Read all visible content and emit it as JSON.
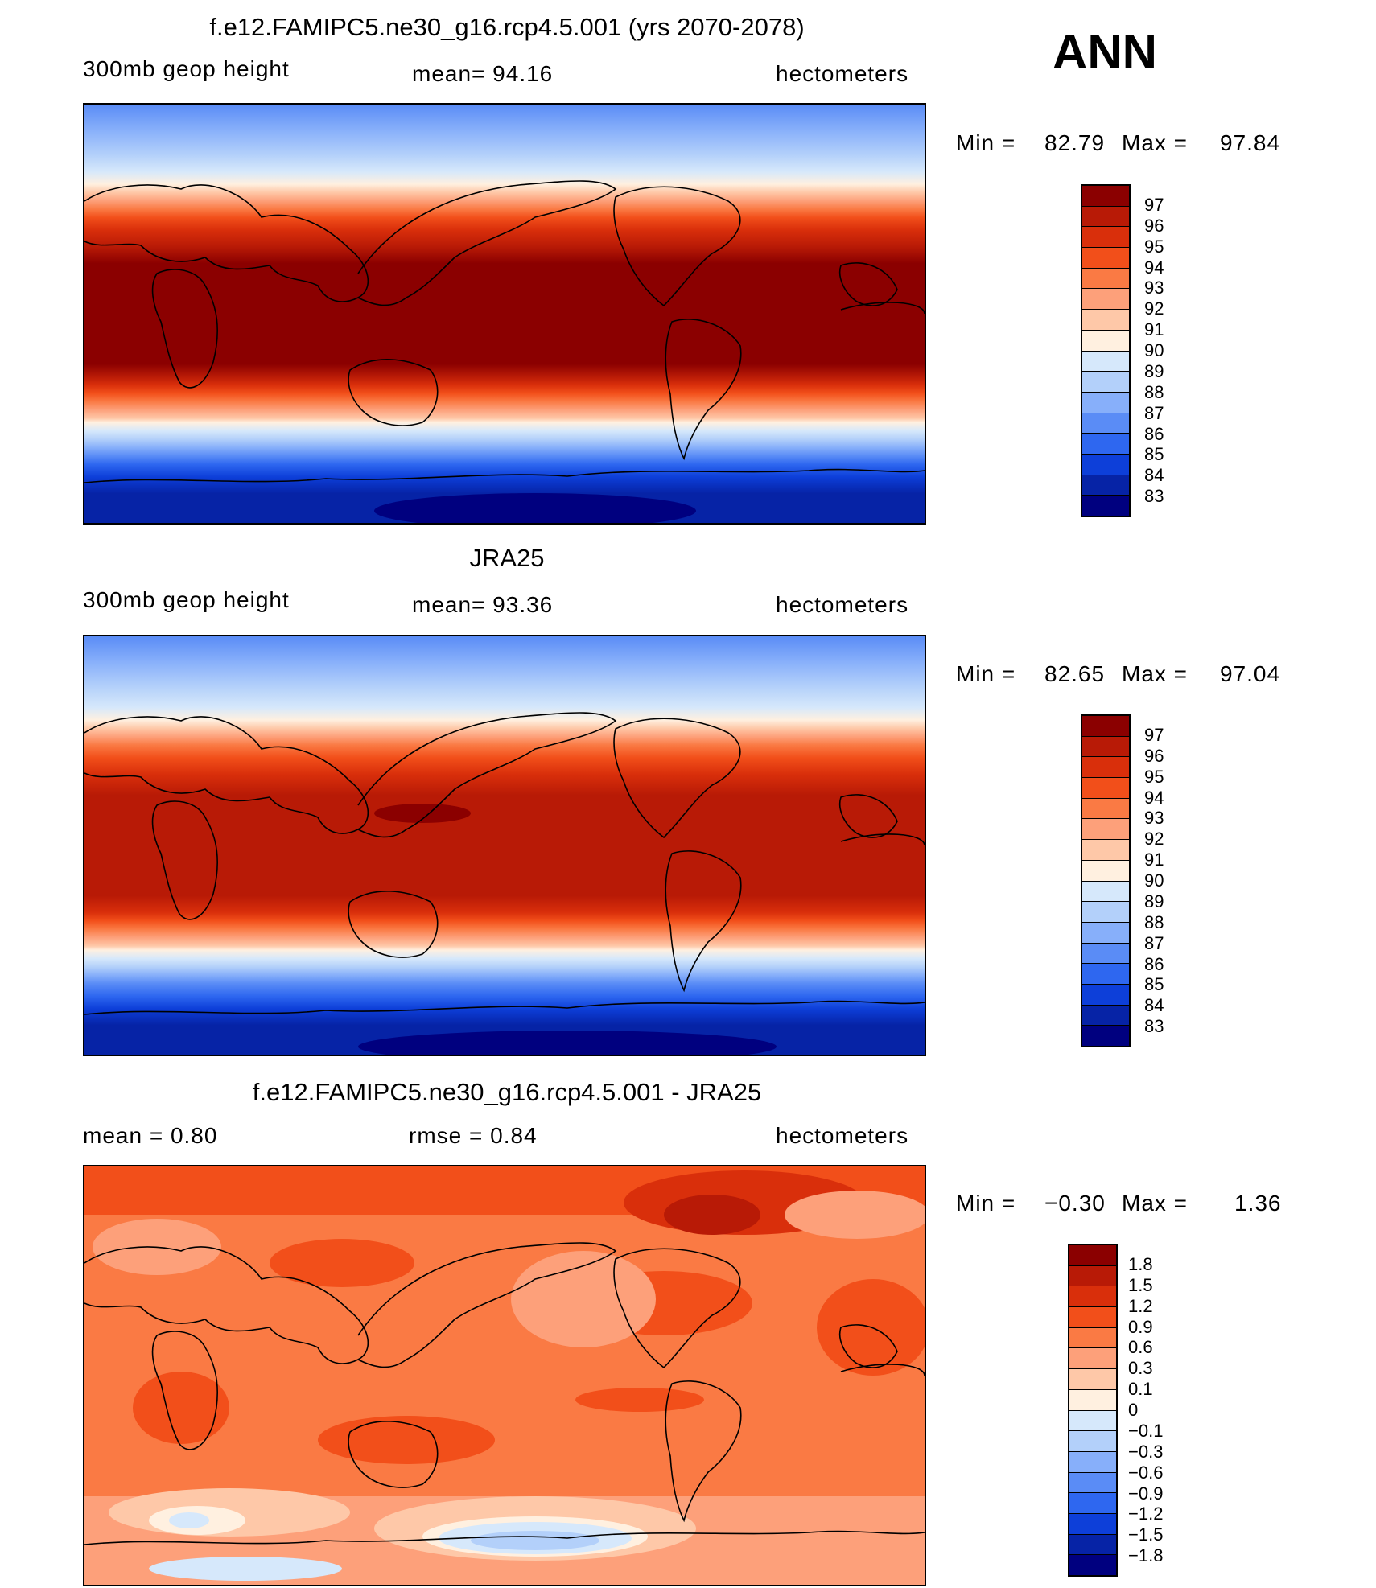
{
  "season": "ANN",
  "panels": [
    {
      "title": "f.e12.FAMIPC5.ne30_g16.rcp4.5.001 (yrs 2070-2078)",
      "left_text": "300mb  geop  height",
      "center_text": "mean=   94.16",
      "right_text": "hectometers",
      "min_label": "Min  =",
      "min_value": "82.79",
      "max_label": "Max  =",
      "max_value": "97.84",
      "colorbar": {
        "labels": [
          "97",
          "96",
          "95",
          "94",
          "93",
          "92",
          "91",
          "90",
          "89",
          "88",
          "87",
          "86",
          "85",
          "84",
          "83"
        ],
        "colors": [
          "#8b0000",
          "#b81a06",
          "#d92f0b",
          "#f24f1a",
          "#fa7a44",
          "#fda07a",
          "#fec8a8",
          "#fff0e0",
          "#d6e8fb",
          "#b3d0fa",
          "#87affa",
          "#5a8cf6",
          "#2e67f0",
          "#0d3fd9",
          "#0623a6",
          "#00007f"
        ]
      }
    },
    {
      "title": "JRA25",
      "left_text": "300mb  geop  height",
      "center_text": "mean=   93.36",
      "right_text": "hectometers",
      "min_label": "Min  =",
      "min_value": "82.65",
      "max_label": "Max  =",
      "max_value": "97.04",
      "colorbar": {
        "labels": [
          "97",
          "96",
          "95",
          "94",
          "93",
          "92",
          "91",
          "90",
          "89",
          "88",
          "87",
          "86",
          "85",
          "84",
          "83"
        ],
        "colors": [
          "#8b0000",
          "#b81a06",
          "#d92f0b",
          "#f24f1a",
          "#fa7a44",
          "#fda07a",
          "#fec8a8",
          "#fff0e0",
          "#d6e8fb",
          "#b3d0fa",
          "#87affa",
          "#5a8cf6",
          "#2e67f0",
          "#0d3fd9",
          "#0623a6",
          "#00007f"
        ]
      }
    },
    {
      "title": "f.e12.FAMIPC5.ne30_g16.rcp4.5.001 - JRA25",
      "left_text": "mean  =     0.80",
      "center_text": "rmse  =     0.84",
      "right_text": "hectometers",
      "min_label": "Min  =",
      "min_value": "−0.30",
      "max_label": "Max  =",
      "max_value": "1.36",
      "colorbar": {
        "labels": [
          "1.8",
          "1.5",
          "1.2",
          "0.9",
          "0.6",
          "0.3",
          "0.1",
          "0",
          "−0.1",
          "−0.3",
          "−0.6",
          "−0.9",
          "−1.2",
          "−1.5",
          "−1.8"
        ],
        "colors": [
          "#8b0000",
          "#b81a06",
          "#d92f0b",
          "#f24f1a",
          "#fa7a44",
          "#fda07a",
          "#fec8a8",
          "#fff0e0",
          "#d6e8fb",
          "#b3d0fa",
          "#87affa",
          "#5a8cf6",
          "#2e67f0",
          "#0d3fd9",
          "#0623a6",
          "#00007f"
        ]
      }
    }
  ]
}
